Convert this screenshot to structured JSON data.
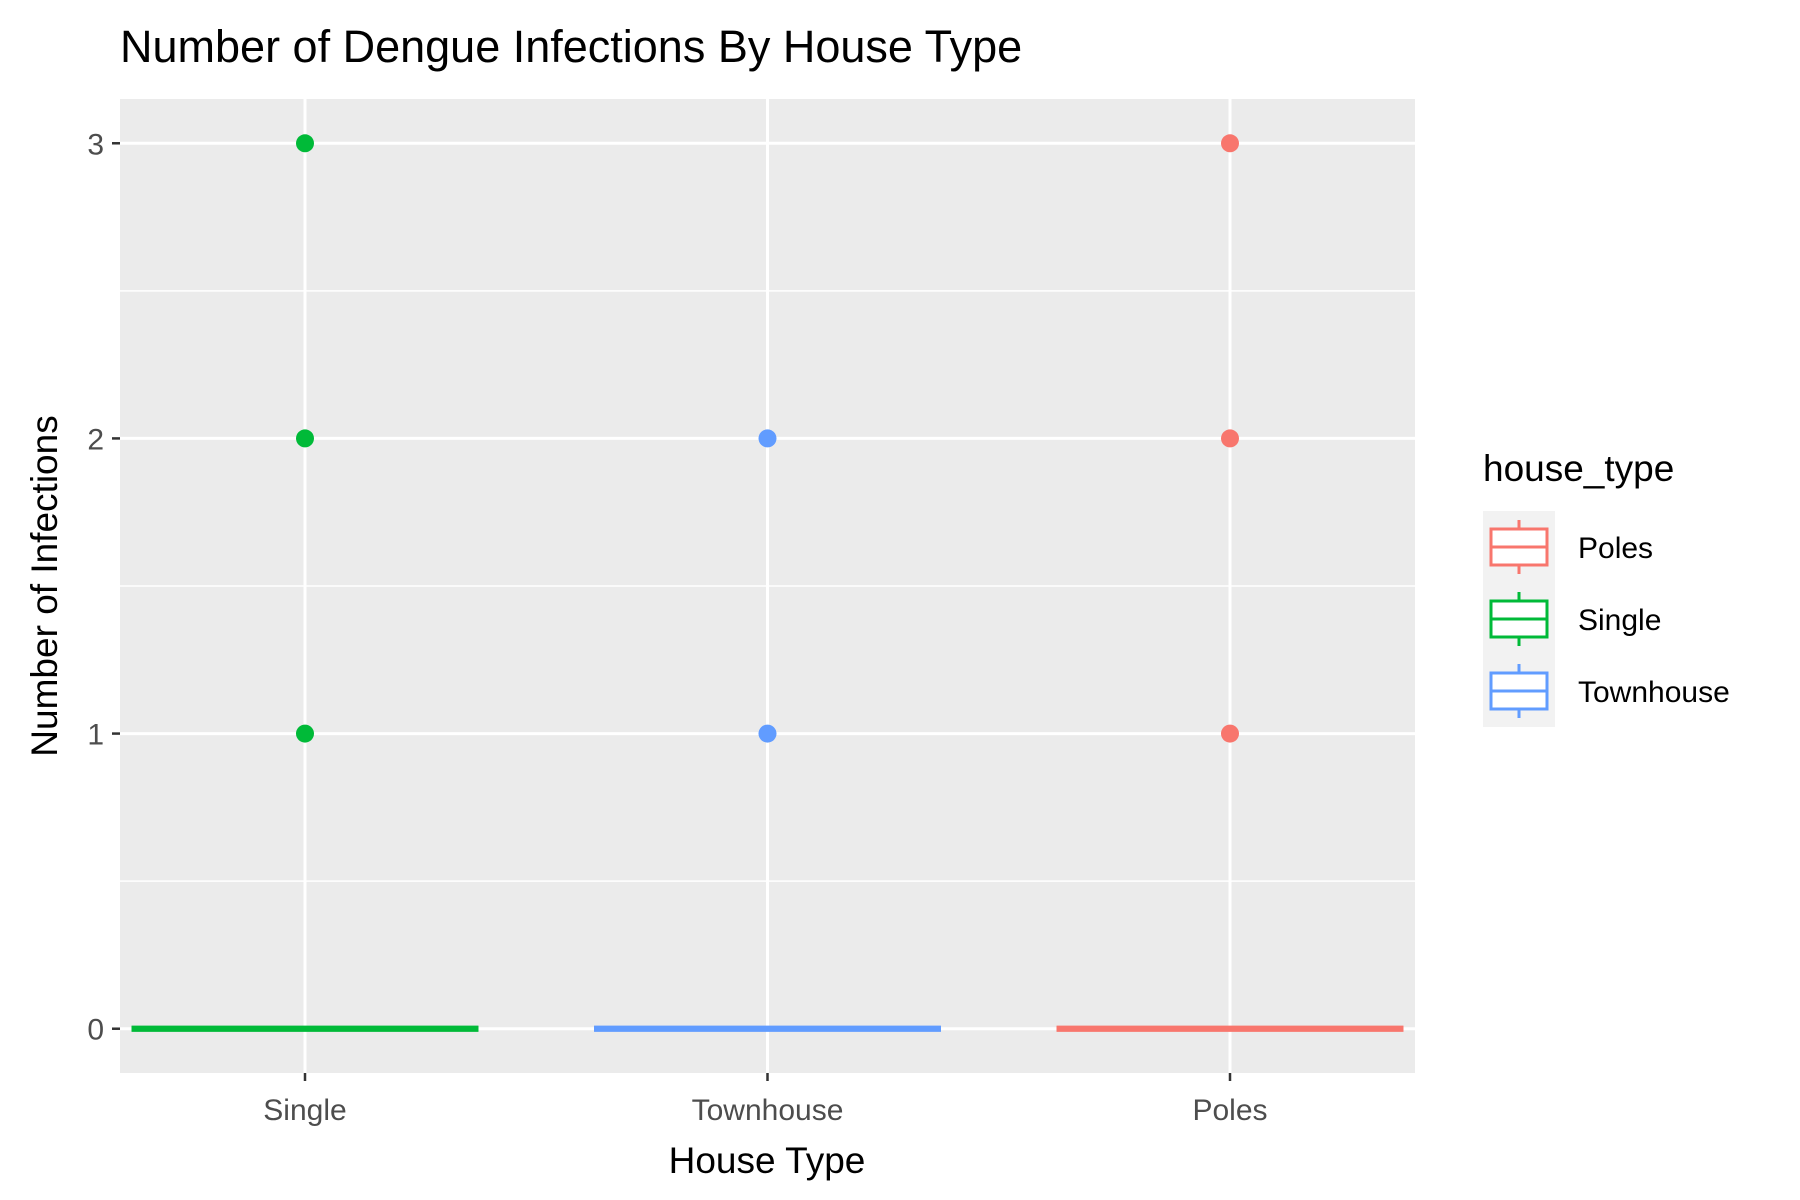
{
  "chart_data": {
    "type": "boxplot",
    "title": "Number of Dengue Infections By House Type",
    "xlabel": "House Type",
    "ylabel": "Number of Infections",
    "categories": [
      "Single",
      "Townhouse",
      "Poles"
    ],
    "ylim": [
      -0.15,
      3.15
    ],
    "yticks": [
      0,
      1,
      2,
      3
    ],
    "grid": true,
    "legend": {
      "title": "house_type",
      "position": "right",
      "entries": [
        {
          "label": "Poles",
          "color": "#F8766D"
        },
        {
          "label": "Single",
          "color": "#00BA38"
        },
        {
          "label": "Townhouse",
          "color": "#619CFF"
        }
      ]
    },
    "series": [
      {
        "category": "Single",
        "color": "#00BA38",
        "median": 0,
        "q1": 0,
        "q3": 0,
        "outliers": [
          1,
          2,
          3
        ]
      },
      {
        "category": "Townhouse",
        "color": "#619CFF",
        "median": 0,
        "q1": 0,
        "q3": 0,
        "outliers": [
          1,
          2
        ]
      },
      {
        "category": "Poles",
        "color": "#F8766D",
        "median": 0,
        "q1": 0,
        "q3": 0,
        "outliers": [
          1,
          2,
          3
        ]
      }
    ]
  }
}
